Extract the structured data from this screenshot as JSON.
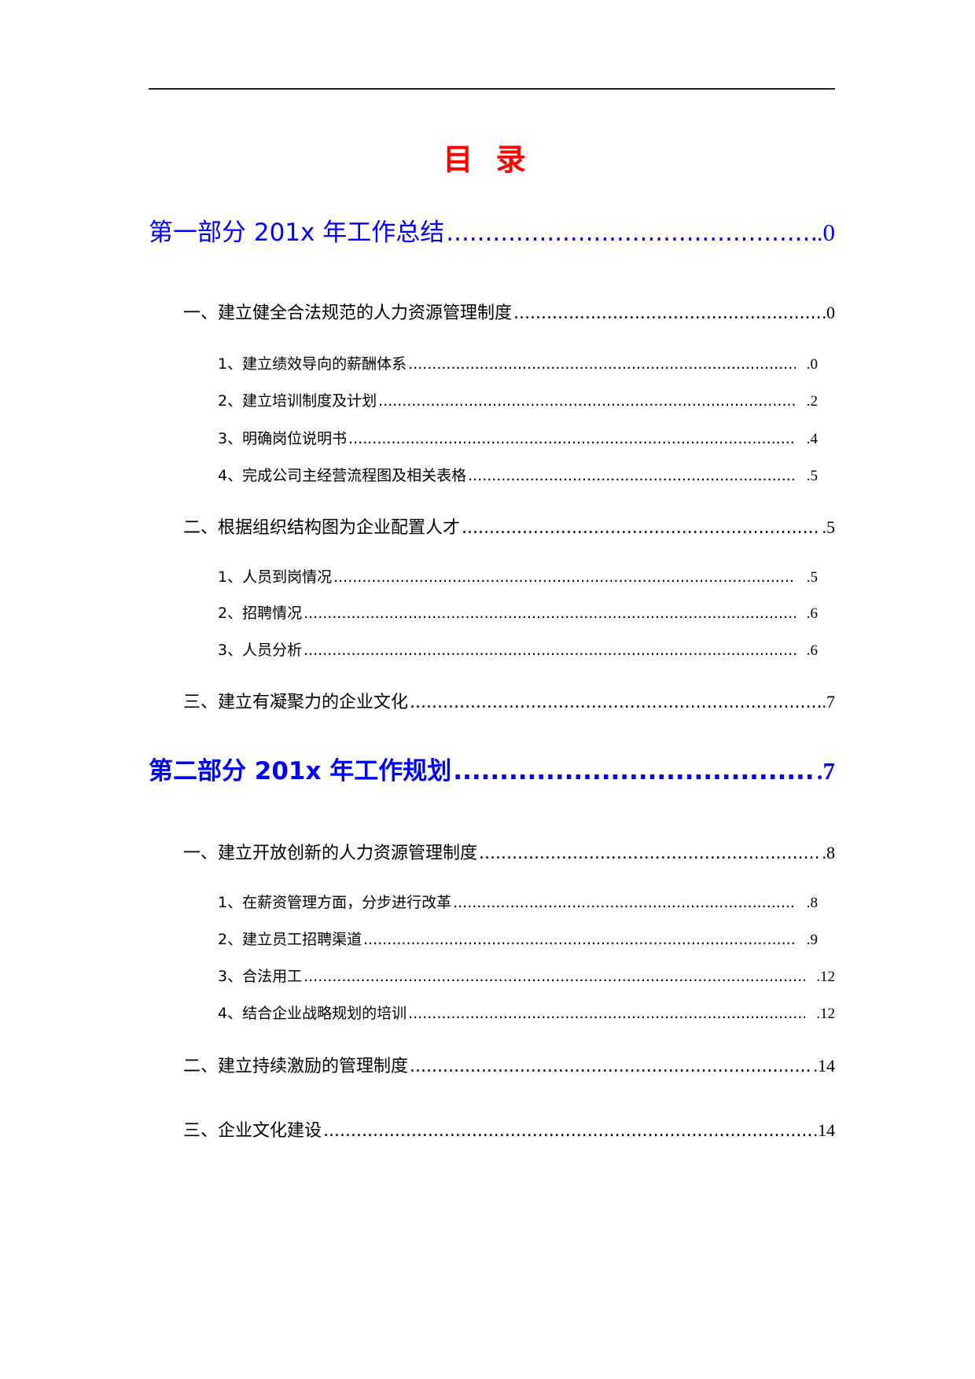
{
  "title": "目 录",
  "entries": [
    {
      "level": 1,
      "label": "第一部分 201x 年工作总结",
      "page": ".0",
      "bold": false
    },
    {
      "level": 2,
      "label": "一、建立健全合法规范的人力资源管理制度",
      "page": ".0"
    },
    {
      "level": 3,
      "label": "1、建立绩效导向的薪酬体系",
      "page": ".0"
    },
    {
      "level": 3,
      "label": "2、建立培训制度及计划",
      "page": ".2"
    },
    {
      "level": 3,
      "label": "3、明确岗位说明书",
      "page": ".4"
    },
    {
      "level": 3,
      "label": "4、完成公司主经营流程图及相关表格",
      "page": ".5"
    },
    {
      "level": 2,
      "label": "二、根据组织结构图为企业配置人才",
      "page": ".5"
    },
    {
      "level": 3,
      "label": "1、人员到岗情况",
      "page": ".5"
    },
    {
      "level": 3,
      "label": "2、招聘情况",
      "page": ".6"
    },
    {
      "level": 3,
      "label": "3、人员分析",
      "page": ".6"
    },
    {
      "level": 2,
      "label": "三、建立有凝聚力的企业文化",
      "page": ".7"
    },
    {
      "level": 1,
      "label": "第二部分 201x 年工作规划",
      "page": ".7",
      "bold": true
    },
    {
      "level": 2,
      "label": "一、建立开放创新的人力资源管理制度",
      "page": ".8"
    },
    {
      "level": 3,
      "label": "1、在薪资管理方面，分步进行改革",
      "page": ".8"
    },
    {
      "level": 3,
      "label": "2、建立员工招聘渠道",
      "page": ".9"
    },
    {
      "level": 3,
      "label": "3、合法用工",
      "page": ".12"
    },
    {
      "level": 3,
      "label": "4、结合企业战略规划的培训",
      "page": ".12"
    },
    {
      "level": 2,
      "label": "二、建立持续激励的管理制度",
      "page": ".14"
    },
    {
      "level": 2,
      "label": "三、企业文化建设",
      "page": ".14"
    }
  ],
  "colors": {
    "title": "#ff0000",
    "part_heading": "#0000ff",
    "text": "#000000"
  }
}
